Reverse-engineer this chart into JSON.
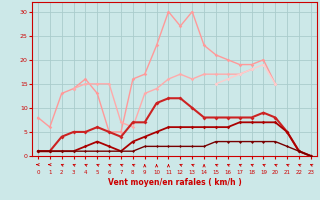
{
  "xlabel": "Vent moyen/en rafales ( km/h )",
  "background_color": "#cce8e8",
  "grid_color": "#aacccc",
  "x": [
    0,
    1,
    2,
    3,
    4,
    5,
    6,
    7,
    8,
    9,
    10,
    11,
    12,
    13,
    14,
    15,
    16,
    17,
    18,
    19,
    20,
    21,
    22,
    23
  ],
  "series": [
    {
      "color": "#ff9999",
      "values": [
        8,
        6,
        13,
        14,
        16,
        13,
        5,
        5,
        16,
        17,
        23,
        30,
        27,
        30,
        23,
        21,
        20,
        19,
        19,
        20,
        15,
        null,
        null,
        null
      ],
      "lw": 1.0,
      "marker": "D",
      "ms": 1.8
    },
    {
      "color": "#ffaaaa",
      "values": [
        null,
        null,
        null,
        14,
        15,
        15,
        15,
        7,
        6,
        13,
        14,
        16,
        17,
        16,
        17,
        17,
        17,
        17,
        18,
        null,
        null,
        null,
        null,
        null
      ],
      "lw": 1.0,
      "marker": "D",
      "ms": 1.8
    },
    {
      "color": "#ffcccc",
      "values": [
        null,
        null,
        null,
        null,
        null,
        null,
        null,
        null,
        null,
        null,
        null,
        null,
        null,
        null,
        null,
        15,
        16,
        17,
        18,
        19,
        15,
        null,
        null,
        null
      ],
      "lw": 1.0,
      "marker": "D",
      "ms": 1.8
    },
    {
      "color": "#cc2222",
      "values": [
        1,
        1,
        4,
        5,
        5,
        6,
        5,
        4,
        7,
        7,
        11,
        12,
        12,
        10,
        8,
        8,
        8,
        8,
        8,
        9,
        8,
        5,
        1,
        0
      ],
      "lw": 1.5,
      "marker": "D",
      "ms": 2.0
    },
    {
      "color": "#aa0000",
      "values": [
        1,
        1,
        1,
        1,
        2,
        3,
        2,
        1,
        3,
        4,
        5,
        6,
        6,
        6,
        6,
        6,
        6,
        7,
        7,
        7,
        7,
        5,
        1,
        0
      ],
      "lw": 1.3,
      "marker": "D",
      "ms": 1.8
    },
    {
      "color": "#770000",
      "values": [
        1,
        1,
        1,
        1,
        1,
        1,
        1,
        1,
        1,
        2,
        2,
        2,
        2,
        2,
        2,
        3,
        3,
        3,
        3,
        3,
        3,
        2,
        1,
        0
      ],
      "lw": 1.0,
      "marker": "D",
      "ms": 1.5
    }
  ],
  "ylim": [
    0,
    32
  ],
  "xlim": [
    -0.5,
    23.5
  ],
  "yticks": [
    0,
    5,
    10,
    15,
    20,
    25,
    30
  ],
  "xticks": [
    0,
    1,
    2,
    3,
    4,
    5,
    6,
    7,
    8,
    9,
    10,
    11,
    12,
    13,
    14,
    15,
    16,
    17,
    18,
    19,
    20,
    21,
    22,
    23
  ],
  "tick_color": "#cc0000",
  "axis_color": "#cc0000",
  "label_color": "#cc0000",
  "arrow_angles": [
    270,
    270,
    225,
    225,
    225,
    225,
    225,
    225,
    225,
    180,
    180,
    180,
    225,
    225,
    180,
    225,
    225,
    225,
    225,
    225,
    225,
    225,
    225,
    225
  ]
}
